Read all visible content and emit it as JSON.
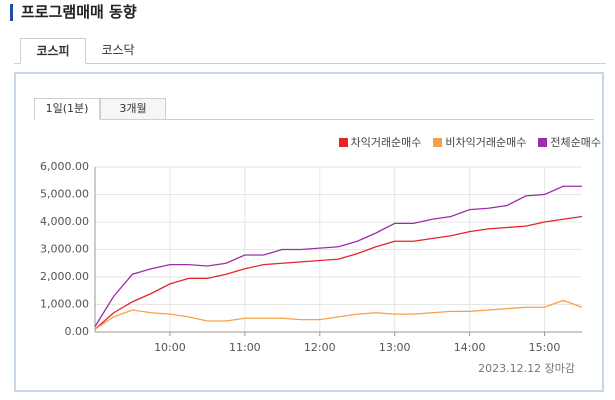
{
  "header": {
    "title": "프로그램매매 동향"
  },
  "tabs": [
    "코스피",
    "코스닥"
  ],
  "subtabs": [
    "1일(1분)",
    "3개월"
  ],
  "footer": "2023.12.12 장마감",
  "chart_data": {
    "type": "line",
    "x": [
      540,
      555,
      570,
      585,
      600,
      615,
      630,
      645,
      660,
      675,
      690,
      705,
      720,
      735,
      750,
      765,
      780,
      795,
      810,
      825,
      840,
      855,
      870,
      885,
      900,
      915,
      930
    ],
    "series": [
      {
        "name": "차익거래순매수",
        "color": "#e8232a",
        "values": [
          100,
          700,
          1100,
          1400,
          1750,
          1950,
          1950,
          2100,
          2300,
          2450,
          2500,
          2550,
          2600,
          2650,
          2850,
          3100,
          3300,
          3300,
          3400,
          3500,
          3650,
          3750,
          3800,
          3850,
          4000,
          4100,
          4200
        ]
      },
      {
        "name": "비차익거래순매수",
        "color": "#f7a04b",
        "values": [
          100,
          550,
          800,
          700,
          650,
          550,
          400,
          400,
          500,
          500,
          500,
          450,
          450,
          550,
          650,
          700,
          650,
          650,
          700,
          750,
          750,
          800,
          850,
          900,
          900,
          1150,
          900
        ]
      },
      {
        "name": "전체순매수",
        "color": "#9b2ea8",
        "values": [
          200,
          1300,
          2100,
          2300,
          2450,
          2450,
          2400,
          2500,
          2800,
          2800,
          3000,
          3000,
          3050,
          3100,
          3300,
          3600,
          3950,
          3950,
          4100,
          4200,
          4450,
          4500,
          4600,
          4950,
          5000,
          5300,
          5300
        ]
      }
    ],
    "xlim": [
      540,
      930
    ],
    "xticks": [
      {
        "value": 600,
        "label": "10:00"
      },
      {
        "value": 660,
        "label": "11:00"
      },
      {
        "value": 720,
        "label": "12:00"
      },
      {
        "value": 780,
        "label": "13:00"
      },
      {
        "value": 840,
        "label": "14:00"
      },
      {
        "value": 900,
        "label": "15:00"
      }
    ],
    "ylim": [
      0,
      6000
    ],
    "yticks": [
      {
        "value": 0,
        "label": "0.00"
      },
      {
        "value": 1000,
        "label": "1,000.00"
      },
      {
        "value": 2000,
        "label": "2,000.00"
      },
      {
        "value": 3000,
        "label": "3,000.00"
      },
      {
        "value": 4000,
        "label": "4,000.00"
      },
      {
        "value": 5000,
        "label": "5,000.00"
      },
      {
        "value": 6000,
        "label": "6,000.00"
      }
    ],
    "grid": true
  }
}
